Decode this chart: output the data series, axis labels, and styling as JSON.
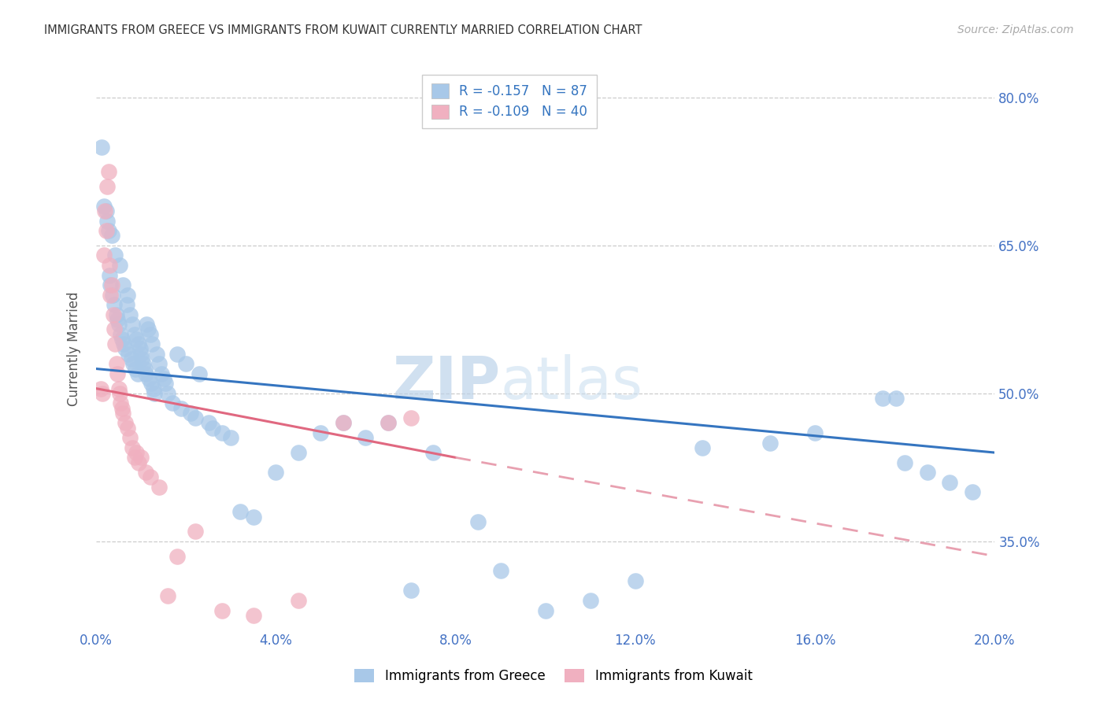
{
  "title": "IMMIGRANTS FROM GREECE VS IMMIGRANTS FROM KUWAIT CURRENTLY MARRIED CORRELATION CHART",
  "source": "Source: ZipAtlas.com",
  "ylabel": "Currently Married",
  "watermark_zip": "ZIP",
  "watermark_atlas": "atlas",
  "xlim": [
    0.0,
    20.0
  ],
  "ylim": [
    26.0,
    83.0
  ],
  "yticks": [
    35.0,
    50.0,
    65.0,
    80.0
  ],
  "xticks": [
    0.0,
    4.0,
    8.0,
    12.0,
    16.0,
    20.0
  ],
  "greece_color": "#a8c8e8",
  "kuwait_color": "#f0b0c0",
  "greece_line_color": "#3575c0",
  "kuwait_line_color": "#e06880",
  "kuwait_dashed_color": "#e8a0b0",
  "tick_color": "#4472c4",
  "grid_color": "#cccccc",
  "title_color": "#333333",
  "source_color": "#aaaaaa",
  "ylabel_color": "#555555",
  "greece_R": -0.157,
  "greece_N": 87,
  "kuwait_R": -0.109,
  "kuwait_N": 40,
  "legend_label_greece": "Immigrants from Greece",
  "legend_label_kuwait": "Immigrants from Kuwait",
  "greece_line_x0": 0.0,
  "greece_line_y0": 52.5,
  "greece_line_x1": 20.0,
  "greece_line_y1": 44.0,
  "kuwait_solid_x0": 0.0,
  "kuwait_solid_y0": 50.5,
  "kuwait_solid_x1": 8.0,
  "kuwait_solid_y1": 43.5,
  "kuwait_dashed_x0": 8.0,
  "kuwait_dashed_y0": 43.5,
  "kuwait_dashed_x1": 20.0,
  "kuwait_dashed_y1": 33.5,
  "greece_x": [
    0.12,
    0.18,
    0.22,
    0.25,
    0.28,
    0.3,
    0.32,
    0.35,
    0.37,
    0.4,
    0.42,
    0.45,
    0.48,
    0.5,
    0.52,
    0.55,
    0.58,
    0.6,
    0.62,
    0.65,
    0.68,
    0.7,
    0.72,
    0.75,
    0.78,
    0.8,
    0.82,
    0.85,
    0.88,
    0.9,
    0.92,
    0.95,
    0.98,
    1.0,
    1.02,
    1.05,
    1.08,
    1.1,
    1.12,
    1.15,
    1.18,
    1.2,
    1.22,
    1.25,
    1.28,
    1.3,
    1.35,
    1.4,
    1.45,
    1.5,
    1.55,
    1.6,
    1.7,
    1.8,
    1.9,
    2.0,
    2.1,
    2.2,
    2.3,
    2.5,
    2.6,
    2.8,
    3.0,
    3.2,
    3.5,
    4.0,
    4.5,
    5.0,
    5.5,
    6.0,
    6.5,
    7.0,
    7.5,
    8.5,
    9.0,
    10.0,
    11.0,
    12.0,
    13.5,
    15.0,
    16.0,
    17.5,
    18.0,
    18.5,
    19.0,
    19.5,
    17.8
  ],
  "greece_y": [
    75.0,
    69.0,
    68.5,
    67.5,
    66.5,
    62.0,
    61.0,
    66.0,
    60.0,
    59.0,
    64.0,
    58.0,
    57.5,
    57.0,
    63.0,
    56.0,
    55.5,
    61.0,
    55.0,
    54.5,
    59.0,
    60.0,
    54.0,
    58.0,
    53.5,
    57.0,
    53.0,
    56.0,
    52.5,
    55.5,
    52.0,
    55.0,
    54.5,
    54.0,
    53.5,
    53.0,
    52.5,
    52.0,
    57.0,
    56.5,
    51.5,
    56.0,
    51.0,
    55.0,
    50.5,
    50.0,
    54.0,
    53.0,
    52.0,
    51.5,
    51.0,
    50.0,
    49.0,
    54.0,
    48.5,
    53.0,
    48.0,
    47.5,
    52.0,
    47.0,
    46.5,
    46.0,
    45.5,
    38.0,
    37.5,
    42.0,
    44.0,
    46.0,
    47.0,
    45.5,
    47.0,
    30.0,
    44.0,
    37.0,
    32.0,
    28.0,
    29.0,
    31.0,
    44.5,
    45.0,
    46.0,
    49.5,
    43.0,
    42.0,
    41.0,
    40.0,
    49.5
  ],
  "kuwait_x": [
    0.1,
    0.14,
    0.18,
    0.2,
    0.22,
    0.25,
    0.28,
    0.3,
    0.32,
    0.35,
    0.38,
    0.4,
    0.42,
    0.45,
    0.48,
    0.5,
    0.52,
    0.55,
    0.58,
    0.6,
    0.65,
    0.7,
    0.75,
    0.8,
    0.85,
    0.9,
    0.95,
    1.0,
    1.1,
    1.2,
    1.4,
    1.6,
    1.8,
    2.2,
    2.8,
    3.5,
    4.5,
    5.5,
    6.5,
    7.0
  ],
  "kuwait_y": [
    50.5,
    50.0,
    64.0,
    68.5,
    66.5,
    71.0,
    72.5,
    63.0,
    60.0,
    61.0,
    58.0,
    56.5,
    55.0,
    53.0,
    52.0,
    50.5,
    50.0,
    49.0,
    48.5,
    48.0,
    47.0,
    46.5,
    45.5,
    44.5,
    43.5,
    44.0,
    43.0,
    43.5,
    42.0,
    41.5,
    40.5,
    29.5,
    33.5,
    36.0,
    28.0,
    27.5,
    29.0,
    47.0,
    47.0,
    47.5
  ]
}
